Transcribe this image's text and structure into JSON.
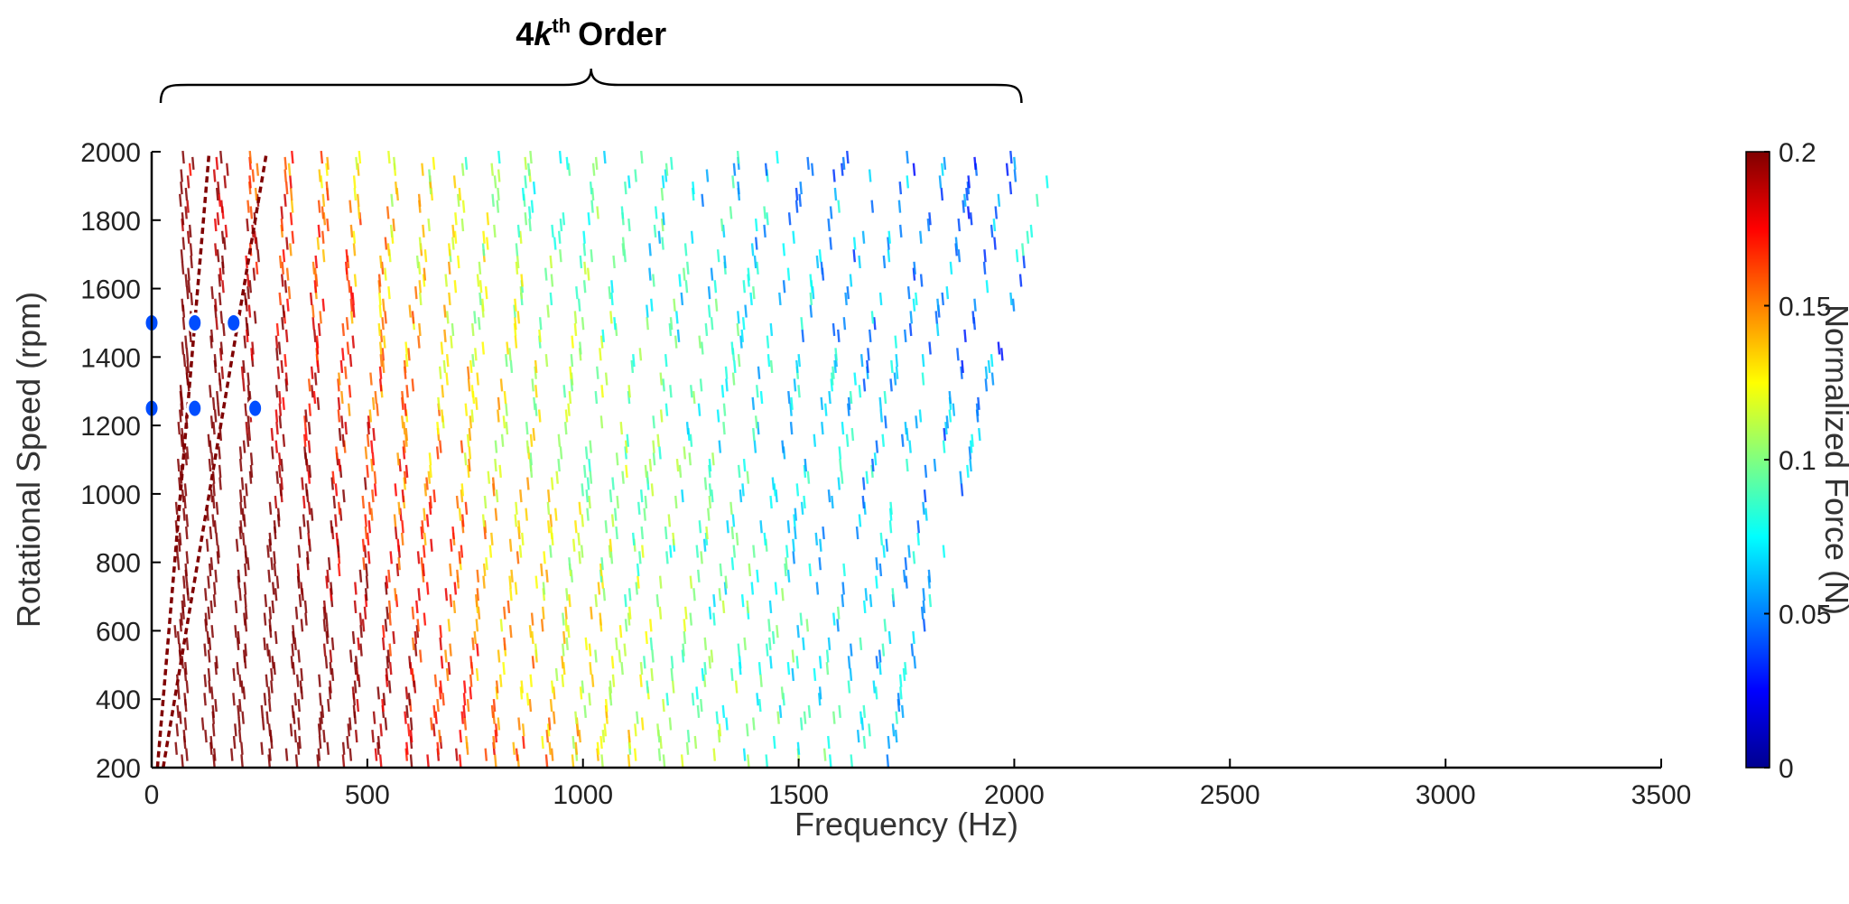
{
  "chart_data": {
    "type": "heatmap",
    "title": "",
    "annotation": {
      "prefix": "4",
      "variable": "k",
      "superscript": "th",
      "suffix": "Order",
      "span_x": [
        0,
        2000
      ]
    },
    "xlabel": "Frequency (Hz)",
    "ylabel": "Rotational Speed (rpm)",
    "xlim": [
      0,
      3500
    ],
    "ylim": [
      200,
      2000
    ],
    "xticks": [
      0,
      500,
      1000,
      1500,
      2000,
      2500,
      3000,
      3500
    ],
    "xtick_labels": [
      "0",
      "500",
      "1000",
      "1500",
      "2000",
      "2500",
      "3000",
      "3500"
    ],
    "yticks": [
      200,
      400,
      600,
      800,
      1000,
      1200,
      1400,
      1600,
      1800,
      2000
    ],
    "ytick_labels": [
      "200",
      "400",
      "600",
      "800",
      "1000",
      "1200",
      "1400",
      "1600",
      "1800",
      "2000"
    ],
    "grid": false,
    "colorbar": {
      "label": "Normalized Force (N)",
      "range": [
        0,
        0.2
      ],
      "ticks": [
        0,
        0.05,
        0.1,
        0.15,
        0.2
      ],
      "tick_labels": [
        "0",
        "0.05",
        "0.1",
        "0.15",
        "0.2"
      ],
      "colormap": [
        "#00008f",
        "#0000ff",
        "#0080ff",
        "#00ffff",
        "#80ff80",
        "#ffff00",
        "#ff8000",
        "#ff0000",
        "#800000"
      ]
    },
    "order_lines": [
      {
        "order": 4,
        "rpm": [
          200,
          2000
        ],
        "value": 0.2
      },
      {
        "order": 8,
        "rpm": [
          200,
          2000
        ],
        "value": 0.2
      }
    ],
    "hot_spots": [
      {
        "x": 0,
        "y": 1500,
        "value": 0.04
      },
      {
        "x": 100,
        "y": 1500,
        "value": 0.04
      },
      {
        "x": 190,
        "y": 1500,
        "value": 0.04
      },
      {
        "x": 0,
        "y": 1250,
        "value": 0.04
      },
      {
        "x": 100,
        "y": 1250,
        "value": 0.04
      },
      {
        "x": 240,
        "y": 1250,
        "value": 0.04
      }
    ],
    "pattern": "Vertical streak pattern along rotor orders; strong (red) amplitudes concentrated below ~1000 Hz at low speed, decaying to faint blue traces toward 3500 Hz."
  }
}
